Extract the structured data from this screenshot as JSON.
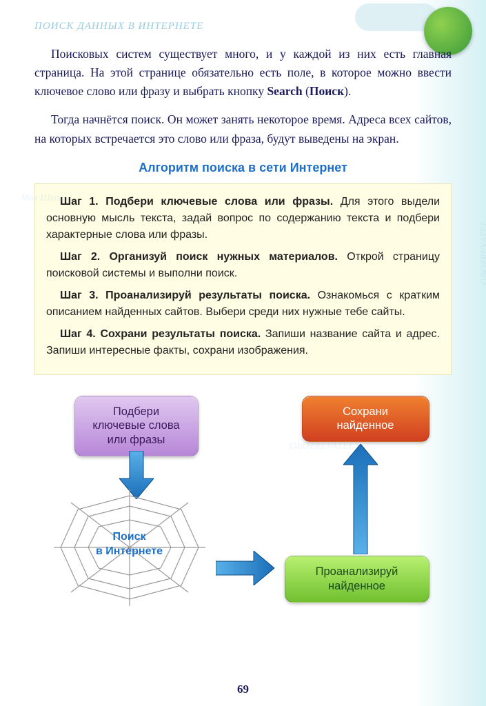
{
  "header": {
    "title": "ПОИСК ДАННЫХ В ИНТЕРНЕТЕ"
  },
  "paragraphs": {
    "p1_a": "Поисковых систем существует много, и у каждой из них есть главная страница. На этой странице обяза­тельно есть поле, в которое можно ввести ключевое сло­во или фразу и выбрать кнопку ",
    "p1_bold1": "Search",
    "p1_mid": " (",
    "p1_bold2": "Поиск",
    "p1_end": ").",
    "p2": "Тогда начнётся поиск. Он может занять некоторое время. Адреса всех сайтов, на которых встречается это слово или фраза, будут выведены на экран."
  },
  "algorithm": {
    "title": "Алгоритм поиска в сети Интернет",
    "steps": [
      {
        "label": "Шаг 1. Подбери ключевые слова или фразы.",
        "text": " Для этого выдели основную мысль текста, задай вопрос по содержанию текста и подбери характерные слова или фразы."
      },
      {
        "label": "Шаг 2. Организуй поиск нужных материалов.",
        "text": " Открой страницу поисковой системы и выполни поиск."
      },
      {
        "label": "Шаг 3. Проанализируй результаты поиска.",
        "text": " Озна­комься с кратким описанием найденных сайтов. Выбери среди них нужные тебе сайты."
      },
      {
        "label": "Шаг 4. Сохрани результаты поиска.",
        "text": " Запиши назва­ние сайта и адрес. Запиши интересные факты, сохрани изображения."
      }
    ]
  },
  "diagram": {
    "type": "flowchart",
    "nodes": {
      "keywords": {
        "text": "Подбери\nключевые слова\nили фразы",
        "bg_gradient": [
          "#e0c8f0",
          "#b786d8"
        ],
        "text_color": "#3a1a5a"
      },
      "save": {
        "text": "Сохрани\nнайденное",
        "bg_gradient": [
          "#f08030",
          "#d04020"
        ],
        "text_color": "#ffffff"
      },
      "analyze": {
        "text": "Проанализируй\nнайденное",
        "bg_gradient": [
          "#b8f070",
          "#70c030"
        ],
        "text_color": "#1a4a1a"
      },
      "search": {
        "text": "Поиск\nв Интернете",
        "web_color": "#888888",
        "text_color": "#1e6fc9"
      }
    },
    "edges": [
      {
        "from": "keywords",
        "to": "search",
        "dir": "down"
      },
      {
        "from": "search",
        "to": "analyze",
        "dir": "right"
      },
      {
        "from": "analyze",
        "to": "save",
        "dir": "up"
      }
    ],
    "arrow_fill": "#2a8fd8",
    "arrow_stroke": "#0a4a8a"
  },
  "page_number": "69",
  "watermarks": [
    "Моя Школа",
    "OBOZREVATEL"
  ],
  "colors": {
    "body_text": "#1a1a5a",
    "algo_title": "#1e6fc9",
    "algo_bg": "#fffde4",
    "page_bg_edge": "#d4f0f4"
  }
}
